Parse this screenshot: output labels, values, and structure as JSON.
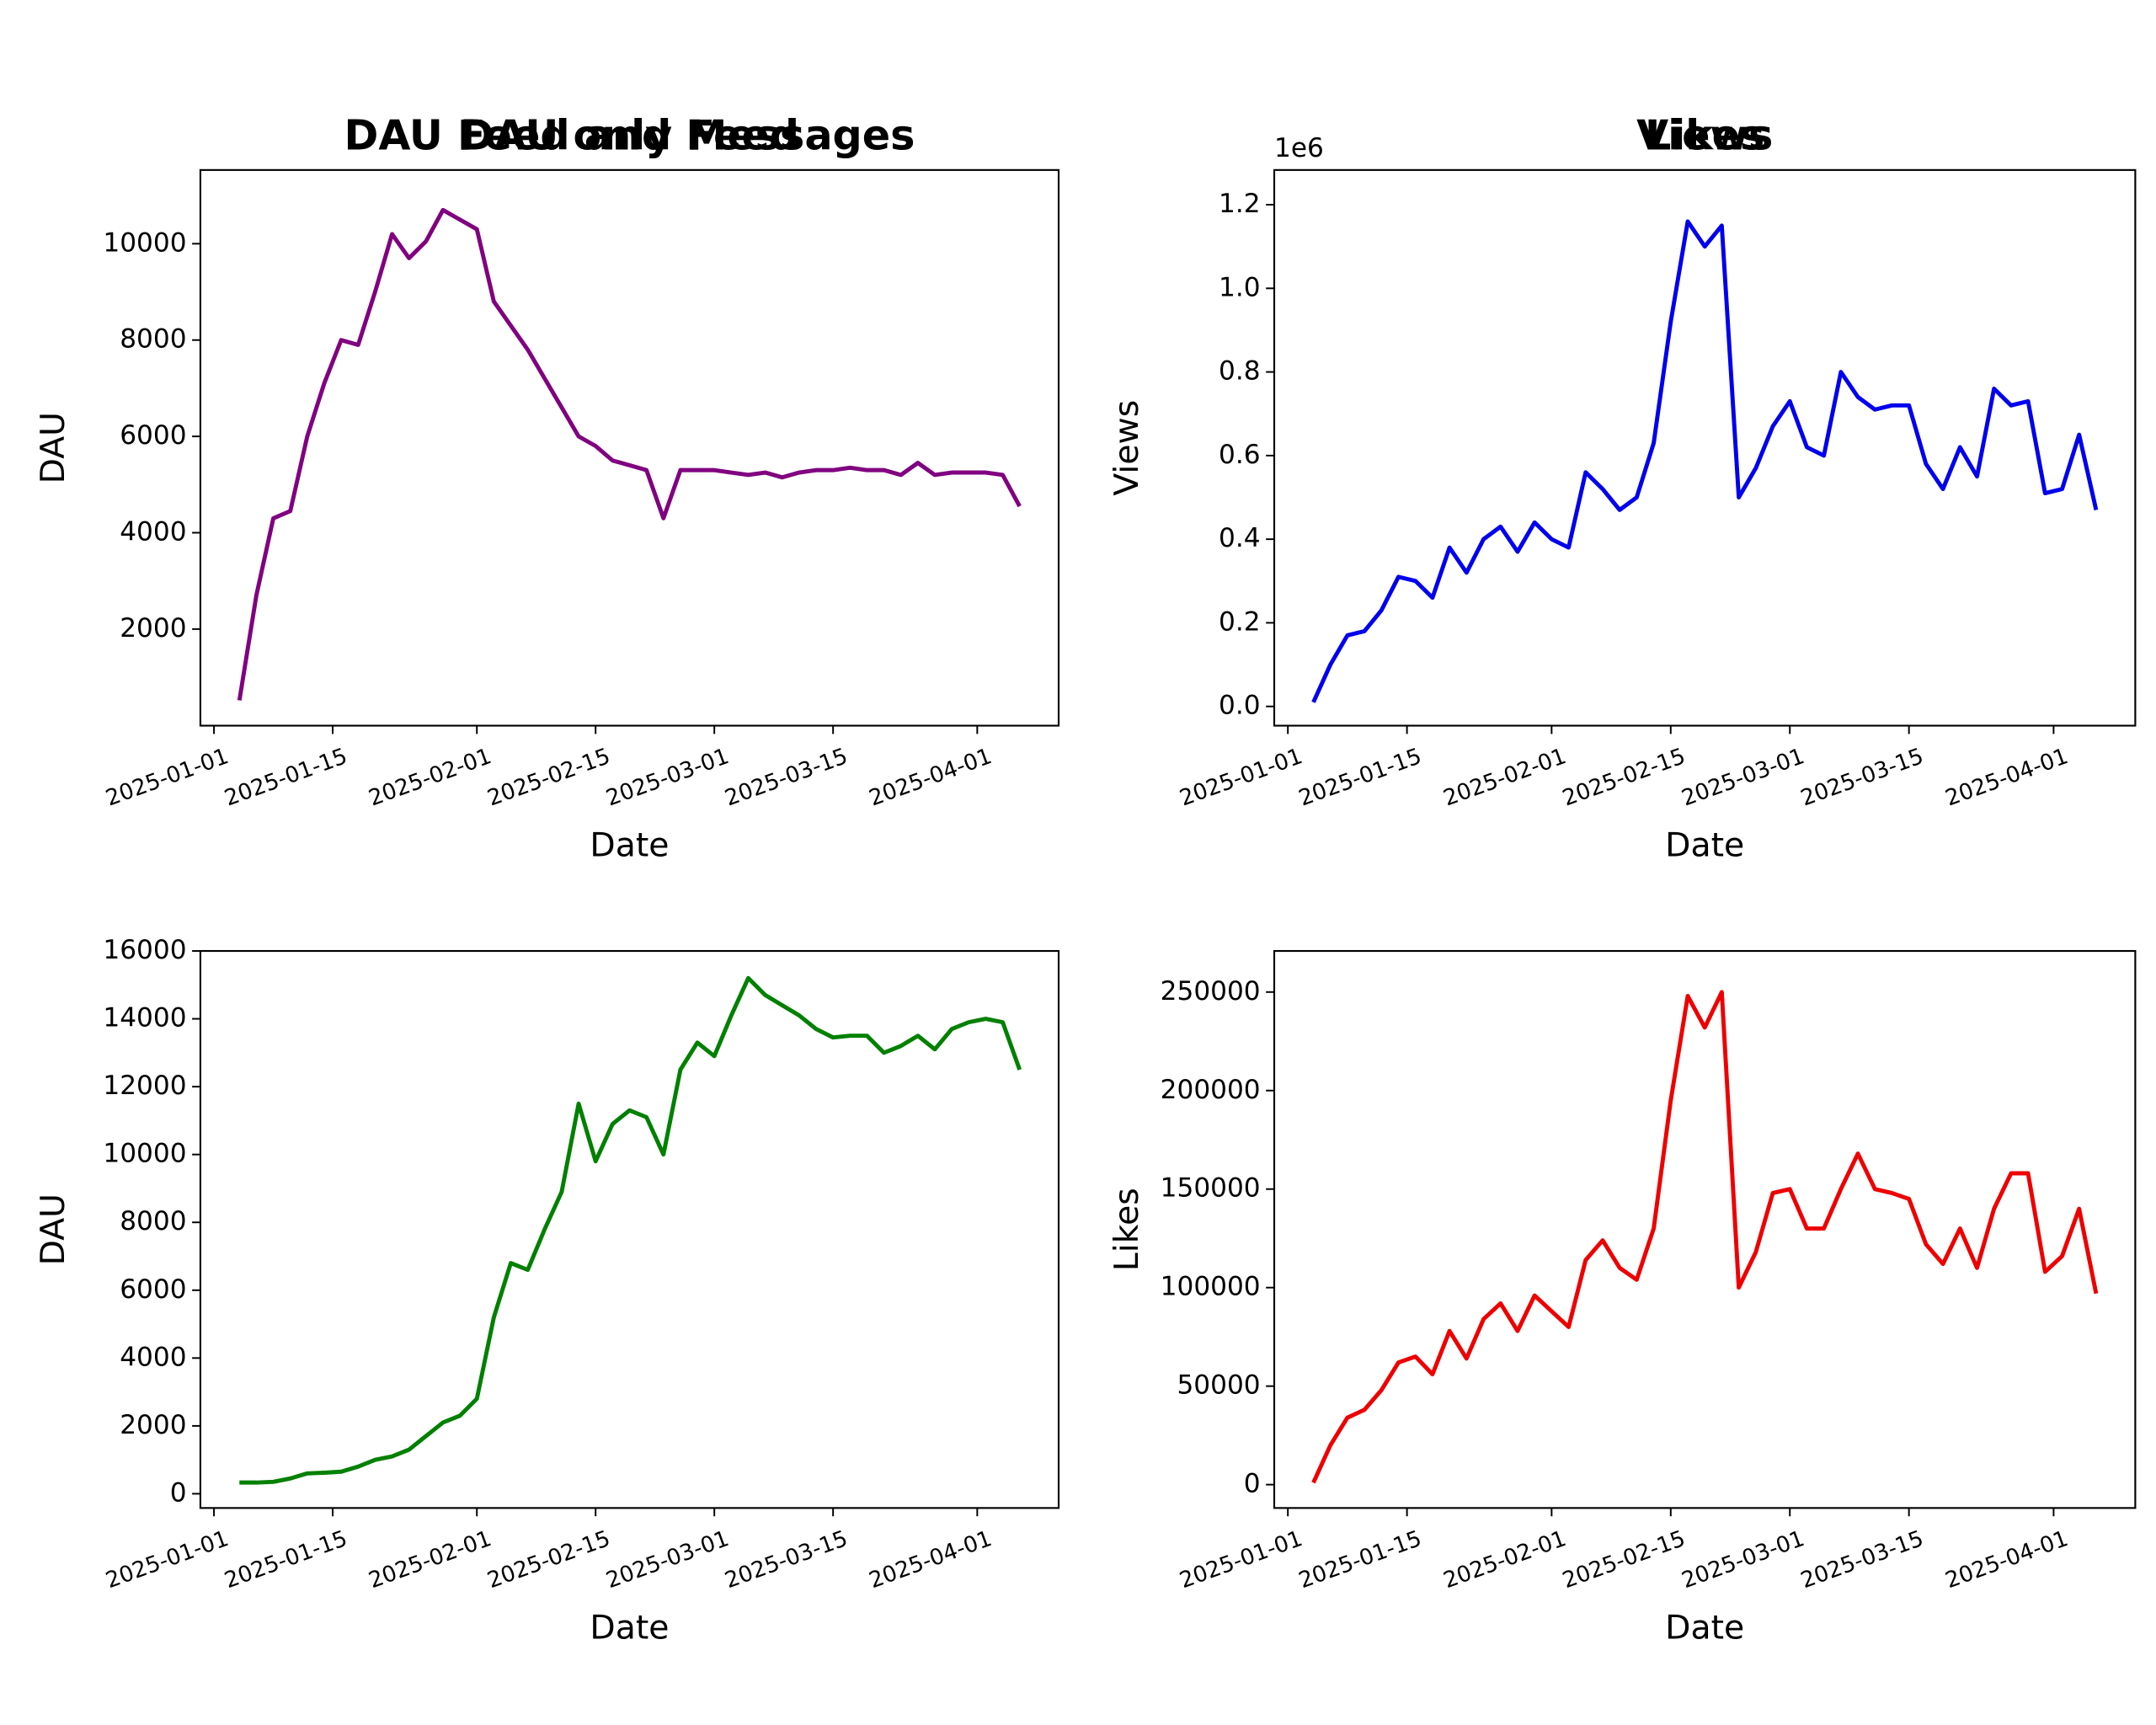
{
  "chart_data": [
    {
      "type": "line",
      "title": "DAU Feed and Messages",
      "xlabel": "Date",
      "ylabel": "DAU",
      "color": "#800080",
      "x": [
        "2025-01-04",
        "2025-01-06",
        "2025-01-08",
        "2025-01-10",
        "2025-01-12",
        "2025-01-14",
        "2025-01-16",
        "2025-01-18",
        "2025-01-20",
        "2025-01-22",
        "2025-01-24",
        "2025-01-26",
        "2025-01-28",
        "2025-01-30",
        "2025-02-01",
        "2025-02-03",
        "2025-02-05",
        "2025-02-07",
        "2025-02-09",
        "2025-02-11",
        "2025-02-13",
        "2025-02-15",
        "2025-02-17",
        "2025-02-19",
        "2025-02-21",
        "2025-02-23",
        "2025-02-25",
        "2025-02-27",
        "2025-03-01",
        "2025-03-03",
        "2025-03-05",
        "2025-03-07",
        "2025-03-09",
        "2025-03-11",
        "2025-03-13",
        "2025-03-15",
        "2025-03-17",
        "2025-03-19",
        "2025-03-21",
        "2025-03-23",
        "2025-03-25",
        "2025-03-27",
        "2025-03-29",
        "2025-03-31",
        "2025-04-02",
        "2025-04-04",
        "2025-04-06"
      ],
      "values": [
        520,
        2700,
        4300,
        4450,
        6000,
        7100,
        8000,
        7900,
        9000,
        10200,
        9700,
        10050,
        10700,
        10500,
        10300,
        8800,
        8300,
        7800,
        7200,
        6600,
        6000,
        5800,
        5500,
        5400,
        5300,
        4300,
        5300,
        5300,
        5300,
        5250,
        5200,
        5250,
        5150,
        5250,
        5300,
        5300,
        5350,
        5300,
        5300,
        5200,
        5450,
        5200,
        5250,
        5250,
        5250,
        5200,
        4550
      ],
      "xlim": [
        "2024-12-30T09:36",
        "2025-04-10T14:24"
      ],
      "xticks": [
        "2025-01-01",
        "2025-01-15",
        "2025-02-01",
        "2025-02-15",
        "2025-03-01",
        "2025-03-15",
        "2025-04-01"
      ],
      "ylim": [
        -5,
        11530
      ],
      "yticks": [
        2000,
        4000,
        6000,
        8000,
        10000
      ]
    },
    {
      "type": "line",
      "title": "Views",
      "xlabel": "Date",
      "ylabel": "Views",
      "color": "#0000ee",
      "offset_text": "1e6",
      "x": [
        "2025-01-04",
        "2025-01-06",
        "2025-01-08",
        "2025-01-10",
        "2025-01-12",
        "2025-01-14",
        "2025-01-16",
        "2025-01-18",
        "2025-01-20",
        "2025-01-22",
        "2025-01-24",
        "2025-01-26",
        "2025-01-28",
        "2025-01-30",
        "2025-02-01",
        "2025-02-03",
        "2025-02-05",
        "2025-02-07",
        "2025-02-09",
        "2025-02-11",
        "2025-02-13",
        "2025-02-15",
        "2025-02-17",
        "2025-02-19",
        "2025-02-21",
        "2025-02-23",
        "2025-02-25",
        "2025-02-27",
        "2025-03-01",
        "2025-03-03",
        "2025-03-05",
        "2025-03-07",
        "2025-03-09",
        "2025-03-11",
        "2025-03-13",
        "2025-03-15",
        "2025-03-17",
        "2025-03-19",
        "2025-03-21",
        "2025-03-23",
        "2025-03-25",
        "2025-03-27",
        "2025-03-29",
        "2025-03-31",
        "2025-04-02",
        "2025-04-04",
        "2025-04-06"
      ],
      "values": [
        0.01,
        0.1,
        0.17,
        0.18,
        0.23,
        0.31,
        0.3,
        0.26,
        0.38,
        0.32,
        0.4,
        0.43,
        0.37,
        0.44,
        0.4,
        0.38,
        0.56,
        0.52,
        0.47,
        0.5,
        0.63,
        0.92,
        1.16,
        1.1,
        1.15,
        0.5,
        0.57,
        0.67,
        0.73,
        0.62,
        0.6,
        0.8,
        0.74,
        0.71,
        0.72,
        0.72,
        0.58,
        0.52,
        0.62,
        0.55,
        0.76,
        0.72,
        0.73,
        0.51,
        0.52,
        0.65,
        0.47
      ],
      "xlim": [
        "2024-12-30T09:36",
        "2025-04-10T14:24"
      ],
      "xticks": [
        "2025-01-01",
        "2025-01-15",
        "2025-02-01",
        "2025-02-15",
        "2025-03-01",
        "2025-03-15",
        "2025-04-01"
      ],
      "ylim": [
        -0.046,
        1.283
      ],
      "yticks": [
        {
          "value": 0,
          "label": "0.0"
        },
        {
          "value": 0.2,
          "label": "0.2"
        },
        {
          "value": 0.4,
          "label": "0.4"
        },
        {
          "value": 0.6,
          "label": "0.6"
        },
        {
          "value": 0.8,
          "label": "0.8"
        },
        {
          "value": 1,
          "label": "1.0"
        },
        {
          "value": 1.2,
          "label": "1.2"
        }
      ]
    },
    {
      "type": "line",
      "title": "DAU only Feed",
      "xlabel": "Date",
      "ylabel": "DAU",
      "color": "#008000",
      "x": [
        "2025-01-04",
        "2025-01-06",
        "2025-01-08",
        "2025-01-10",
        "2025-01-12",
        "2025-01-14",
        "2025-01-16",
        "2025-01-18",
        "2025-01-20",
        "2025-01-22",
        "2025-01-24",
        "2025-01-26",
        "2025-01-28",
        "2025-01-30",
        "2025-02-01",
        "2025-02-03",
        "2025-02-05",
        "2025-02-07",
        "2025-02-09",
        "2025-02-11",
        "2025-02-13",
        "2025-02-15",
        "2025-02-17",
        "2025-02-19",
        "2025-02-21",
        "2025-02-23",
        "2025-02-25",
        "2025-02-27",
        "2025-03-01",
        "2025-03-03",
        "2025-03-05",
        "2025-03-07",
        "2025-03-09",
        "2025-03-11",
        "2025-03-13",
        "2025-03-15",
        "2025-03-17",
        "2025-03-19",
        "2025-03-21",
        "2025-03-23",
        "2025-03-25",
        "2025-03-27",
        "2025-03-29",
        "2025-03-31",
        "2025-04-02",
        "2025-04-04",
        "2025-04-06"
      ],
      "values": [
        330,
        330,
        350,
        450,
        600,
        620,
        650,
        800,
        1000,
        1100,
        1300,
        1700,
        2100,
        2300,
        2800,
        5200,
        6800,
        6600,
        7800,
        8900,
        11500,
        9800,
        10900,
        11300,
        11100,
        10000,
        12500,
        13300,
        12900,
        14100,
        15200,
        14700,
        14400,
        14100,
        13700,
        13450,
        13500,
        13500,
        13000,
        13200,
        13500,
        13100,
        13700,
        13900,
        14000,
        13900,
        12500
      ],
      "xlim": [
        "2024-12-30T09:36",
        "2025-04-10T14:24"
      ],
      "xticks": [
        "2025-01-01",
        "2025-01-15",
        "2025-02-01",
        "2025-02-15",
        "2025-03-01",
        "2025-03-15",
        "2025-04-01"
      ],
      "ylim": [
        -420,
        16000
      ],
      "yticks": [
        0,
        2000,
        4000,
        6000,
        8000,
        10000,
        12000,
        14000,
        16000
      ]
    },
    {
      "type": "line",
      "title": "Likes",
      "xlabel": "Date",
      "ylabel": "Likes",
      "color": "#ee0000",
      "x": [
        "2025-01-04",
        "2025-01-06",
        "2025-01-08",
        "2025-01-10",
        "2025-01-12",
        "2025-01-14",
        "2025-01-16",
        "2025-01-18",
        "2025-01-20",
        "2025-01-22",
        "2025-01-24",
        "2025-01-26",
        "2025-01-28",
        "2025-01-30",
        "2025-02-01",
        "2025-02-03",
        "2025-02-05",
        "2025-02-07",
        "2025-02-09",
        "2025-02-11",
        "2025-02-13",
        "2025-02-15",
        "2025-02-17",
        "2025-02-19",
        "2025-02-21",
        "2025-02-23",
        "2025-02-25",
        "2025-02-27",
        "2025-03-01",
        "2025-03-03",
        "2025-03-05",
        "2025-03-07",
        "2025-03-09",
        "2025-03-11",
        "2025-03-13",
        "2025-03-15",
        "2025-03-17",
        "2025-03-19",
        "2025-03-21",
        "2025-03-23",
        "2025-03-25",
        "2025-03-27",
        "2025-03-29",
        "2025-03-31",
        "2025-04-02",
        "2025-04-04",
        "2025-04-06"
      ],
      "values": [
        1000,
        20000,
        34000,
        38000,
        48000,
        62000,
        65000,
        56000,
        78000,
        64000,
        84000,
        92000,
        78000,
        96000,
        88000,
        80000,
        114000,
        124000,
        110000,
        104000,
        130000,
        195000,
        248000,
        232000,
        250000,
        100000,
        118000,
        148000,
        150000,
        130000,
        130000,
        150000,
        168000,
        150000,
        148000,
        145000,
        122000,
        112000,
        130000,
        110000,
        140000,
        158000,
        158000,
        108000,
        116000,
        140000,
        97000
      ],
      "xlim": [
        "2024-12-30T09:36",
        "2025-04-10T14:24"
      ],
      "xticks": [
        "2025-01-01",
        "2025-01-15",
        "2025-02-01",
        "2025-02-15",
        "2025-03-01",
        "2025-03-15",
        "2025-04-01"
      ],
      "ylim": [
        -11850,
        270850
      ],
      "yticks": [
        0,
        50000,
        100000,
        150000,
        200000,
        250000
      ]
    }
  ]
}
